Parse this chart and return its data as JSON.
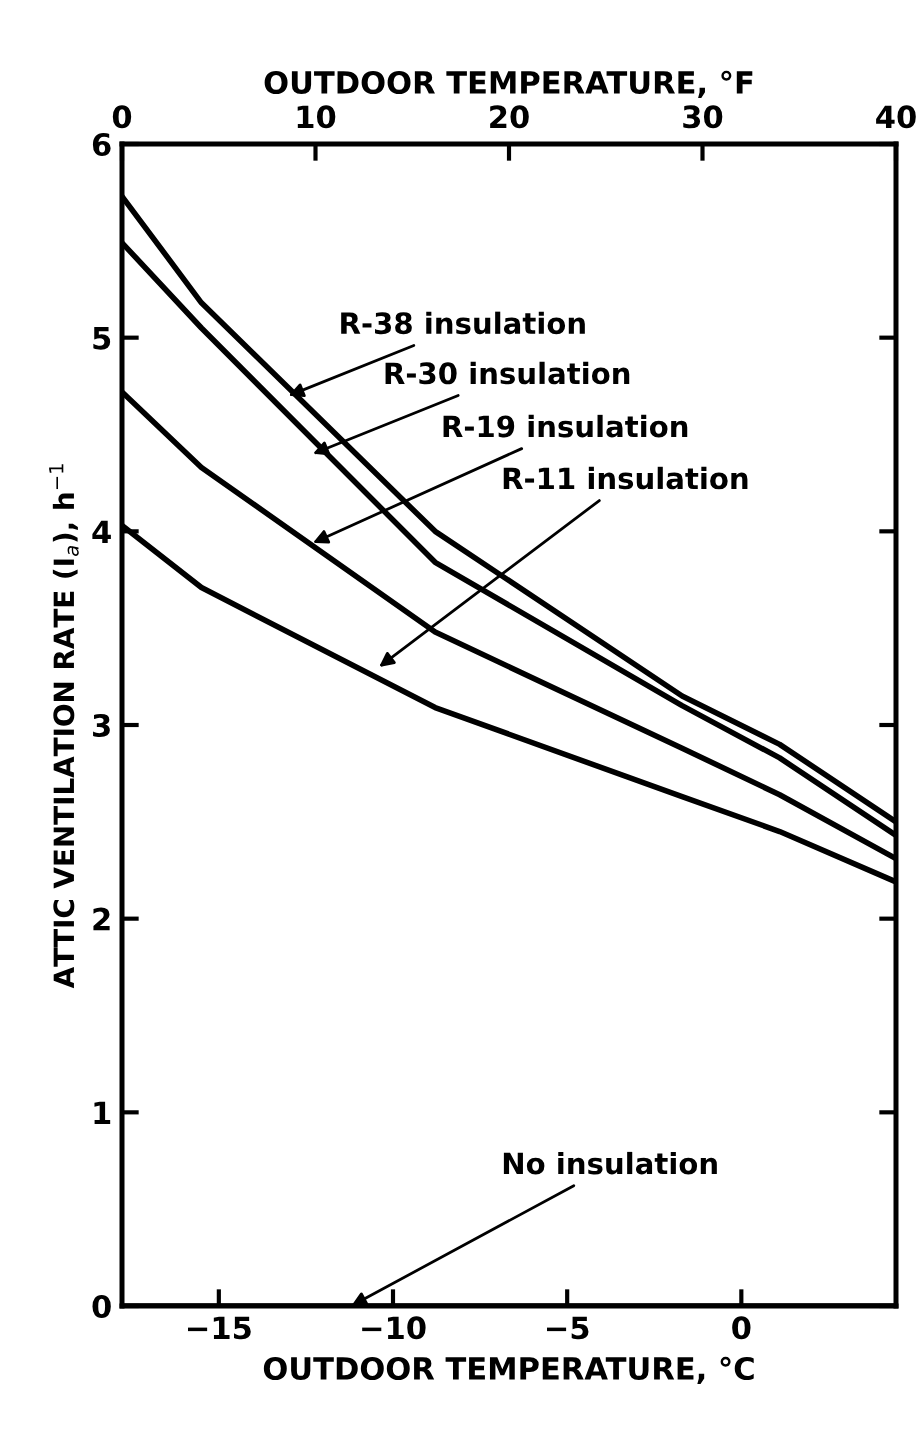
{
  "chart_data": {
    "type": "line",
    "xlabel": "OUTDOOR TEMPERATURE, °C",
    "x2label": "OUTDOOR TEMPERATURE, °F",
    "ylabel": "ATTIC VENTILATION RATE (I$_{a}$), h$^{−1}$",
    "xlim": [
      -17.78,
      4.44
    ],
    "xticks": [
      -15,
      -10,
      -5,
      0
    ],
    "x2lim": [
      0,
      40
    ],
    "x2ticks": [
      0,
      10,
      20,
      30,
      40
    ],
    "ylim": [
      0,
      6
    ],
    "yticks": [
      0,
      1,
      2,
      3,
      4,
      5,
      6
    ],
    "grid": false,
    "legend": false,
    "marker": "none",
    "line_style": "solid",
    "series": [
      {
        "color": "#000000",
        "x": [
          -17.78,
          -15.5,
          -8.79,
          -1.7,
          1.1,
          4.44
        ],
        "values": [
          5.73,
          5.18,
          4.0,
          3.15,
          2.9,
          2.5
        ]
      },
      {
        "color": "#000000",
        "x": [
          -17.78,
          -15.5,
          -8.79,
          -1.7,
          1.1,
          4.44
        ],
        "values": [
          5.49,
          5.05,
          3.84,
          3.1,
          2.83,
          2.43
        ]
      },
      {
        "color": "#000000",
        "x": [
          -17.78,
          -15.5,
          -8.79,
          -1.7,
          1.1,
          4.44
        ],
        "values": [
          4.72,
          4.33,
          3.48,
          2.88,
          2.64,
          2.31
        ]
      },
      {
        "color": "#000000",
        "x": [
          -17.78,
          -15.5,
          -8.79,
          -1.7,
          1.1,
          4.44
        ],
        "values": [
          4.03,
          3.71,
          3.09,
          2.63,
          2.45,
          2.19
        ]
      },
      {
        "color": "#000000",
        "x": [
          -17.78,
          4.44
        ],
        "values": [
          0,
          0
        ]
      }
    ],
    "annotations": [
      {
        "text": "R-38 insulation",
        "x": -13.0,
        "y": 4.7
      },
      {
        "text": "R-30 insulation",
        "x": -12.3,
        "y": 4.4
      },
      {
        "text": "R-19 insulation",
        "x": -12.3,
        "y": 3.94
      },
      {
        "text": "R-11 insulation",
        "x": -10.4,
        "y": 3.3
      },
      {
        "text": "No insulation",
        "x": -11.2,
        "y": 0
      }
    ]
  }
}
